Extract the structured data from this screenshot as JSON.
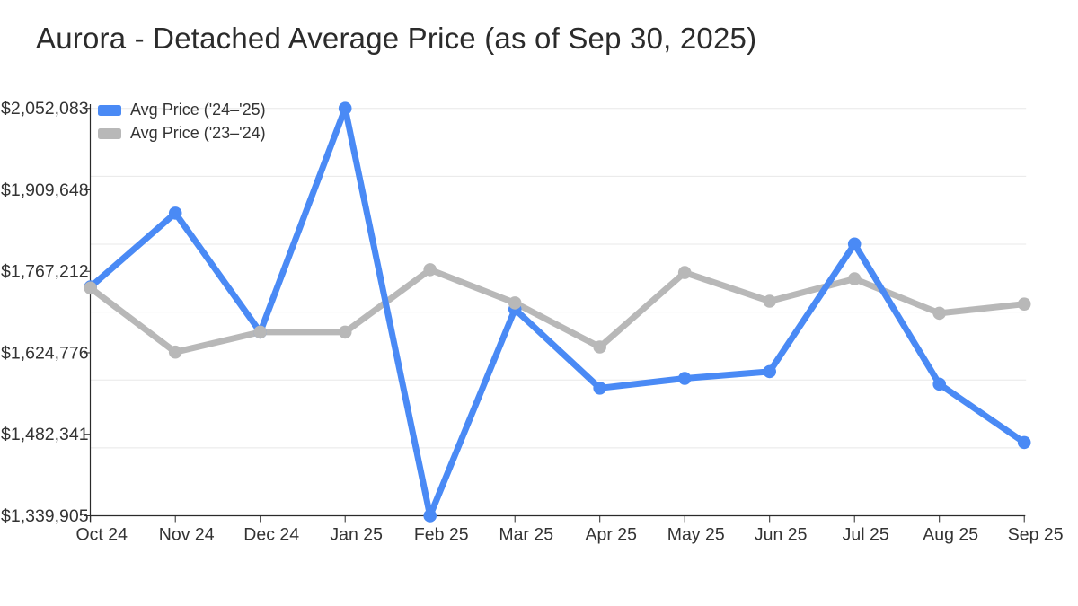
{
  "title": "Aurora - Detached Average Price (as of Sep 30, 2025)",
  "colors": {
    "series_current": "#4a8af5",
    "series_previous": "#b8b8b8",
    "grid": "#e8e8e8",
    "axis": "#2a2a2a",
    "tick_text": "#333333",
    "title_text": "#2b2b2b",
    "background": "#ffffff"
  },
  "legend": {
    "position": "top-left",
    "items": [
      {
        "label": "Avg Price ('24–'25)",
        "color": "#4a8af5"
      },
      {
        "label": "Avg Price ('23–'24)",
        "color": "#b8b8b8"
      }
    ]
  },
  "chart_data": {
    "type": "line",
    "title": "Aurora - Detached Average Price (as of Sep 30, 2025)",
    "x": [
      "Oct 24",
      "Nov 24",
      "Dec 24",
      "Jan 25",
      "Feb 25",
      "Mar 25",
      "Apr 25",
      "May 25",
      "Jun 25",
      "Jul 25",
      "Aug 25",
      "Sep 25"
    ],
    "series": [
      {
        "name": "Avg Price ('24–'25)",
        "color": "#4a8af5",
        "values": [
          1740000,
          1869000,
          1661000,
          2052083,
          1339905,
          1701000,
          1563000,
          1580000,
          1592000,
          1815000,
          1570000,
          1468000
        ]
      },
      {
        "name": "Avg Price ('23–'24)",
        "color": "#b8b8b8",
        "values": [
          1738000,
          1626000,
          1661000,
          1661000,
          1770000,
          1712000,
          1635000,
          1765000,
          1715000,
          1754000,
          1694000,
          1710000
        ]
      }
    ],
    "ylabel": "",
    "xlabel": "",
    "y_min": 1339905,
    "y_max": 2052083,
    "y_tick_labels": [
      "$2,052,083",
      "$1,909,648",
      "$1,767,212",
      "$1,624,776",
      "$1,482,341",
      "$1,339,905"
    ],
    "grid": true,
    "grid_divisions": 6,
    "legend_position": "top-left"
  }
}
